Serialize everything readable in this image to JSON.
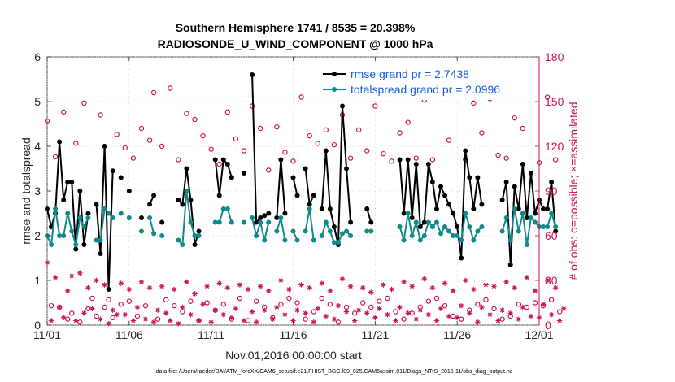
{
  "chart_data": {
    "type": "line",
    "title_line1": "Southern Hemisphere 1741 / 8535 = 20.398%",
    "title_line2": "RADIOSONDE_U_WIND_COMPONENT @ 1000 hPa",
    "xlabel": "Nov.01,2016 00:00:00 start",
    "ylabel_left": "rmse and totalspread",
    "ylabel_right": "# of obs: o=possible; ×=assimilated",
    "footer": "data file: /Users/raeder/DAI/ATM_forcXX/CAM6_setup/f.e21.FHIST_BGC.f09_025.CAM6assim.011/Diags_NTrS_2016-11/obs_diag_output.nc",
    "xlim": [
      0,
      30
    ],
    "ylim_left": [
      0,
      6
    ],
    "ylim_right": [
      0,
      180
    ],
    "x_ticks": [
      0,
      5,
      10,
      15,
      20,
      25,
      30
    ],
    "x_tick_labels": [
      "11/01",
      "11/06",
      "11/11",
      "11/16",
      "11/21",
      "11/26",
      "12/01"
    ],
    "y_left_ticks": [
      "0",
      "1",
      "2",
      "3",
      "4",
      "5",
      "6"
    ],
    "y_right_ticks": [
      "0",
      "30",
      "60",
      "90",
      "120",
      "150",
      "180"
    ],
    "colors": {
      "rmse": "#000000",
      "spread": "#0e8a8a",
      "obs": "#cc1155",
      "legend_text": "#1a5fe0"
    },
    "legend": [
      {
        "name": "rmse grand pr = 2.7438"
      },
      {
        "name": "totalspread grand pr = 2.0996"
      }
    ],
    "series": [
      {
        "name": "rmse",
        "axis": "left",
        "values": [
          2.6,
          2.2,
          2.5,
          4.1,
          2.8,
          3.2,
          3.2,
          1.7,
          3.0,
          1.8,
          2.5,
          null,
          2.7,
          1.6,
          4.0,
          0.8,
          3.45,
          null,
          3.3,
          null,
          3.0,
          null,
          null,
          2.4,
          null,
          2.7,
          2.9,
          null,
          2.3,
          null,
          null,
          null,
          2.8,
          2.7,
          3.5,
          2.8,
          1.8,
          2.1,
          null,
          null,
          null,
          3.7,
          2.9,
          3.7,
          3.6,
          3.3,
          null,
          null,
          3.4,
          null,
          5.6,
          2.3,
          2.4,
          2.45,
          2.5,
          null,
          2.4,
          3.7,
          2.5,
          null,
          3.3,
          2.9,
          null,
          3.5,
          2.7,
          2.9,
          null,
          2.6,
          3.9,
          2.6,
          2.2,
          1.8,
          4.9,
          3.5,
          2.3,
          null,
          null,
          null,
          2.6,
          2.3,
          null,
          null,
          null,
          null,
          null,
          null,
          3.7,
          2.5,
          3.7,
          2.4,
          3.6,
          2.2,
          2.3,
          3.6,
          3.2,
          2.6,
          3.1,
          2.9,
          2.7,
          2.5,
          2.2,
          1.5,
          3.9,
          3.3,
          2.6,
          3.3,
          2.7,
          null,
          null,
          null,
          null,
          2.8,
          3.2,
          1.35,
          3.1,
          2.6,
          3.6,
          2.4,
          3.4,
          2.5,
          2.8,
          2.6,
          2.6,
          3.2,
          2.1,
          null,
          null
        ]
      },
      {
        "name": "totalspread",
        "axis": "left",
        "values": [
          2.0,
          1.8,
          2.6,
          2.0,
          2.0,
          2.5,
          2.1,
          1.8,
          2.4,
          2.2,
          2.4,
          null,
          1.9,
          1.9,
          2.6,
          2.5,
          2.4,
          null,
          2.5,
          null,
          2.4,
          null,
          null,
          2.1,
          null,
          2.4,
          2.05,
          null,
          2.0,
          null,
          null,
          null,
          1.9,
          1.8,
          3.0,
          2.3,
          2.0,
          2.0,
          null,
          null,
          null,
          2.3,
          2.3,
          2.6,
          2.6,
          2.3,
          null,
          null,
          2.3,
          null,
          2.4,
          2.0,
          2.3,
          1.9,
          2.3,
          null,
          2.1,
          2.4,
          1.9,
          null,
          2.1,
          1.9,
          null,
          2.1,
          2.6,
          1.9,
          null,
          2.0,
          2.3,
          2.1,
          1.85,
          1.85,
          2.05,
          2.1,
          2.0,
          null,
          null,
          null,
          2.1,
          2.1,
          null,
          null,
          null,
          null,
          null,
          null,
          2.2,
          1.9,
          2.5,
          2.0,
          2.3,
          1.9,
          2.0,
          2.3,
          2.2,
          2.3,
          2.05,
          2.2,
          2.1,
          2.0,
          2.0,
          1.9,
          2.5,
          2.2,
          1.9,
          2.1,
          2.2,
          null,
          null,
          null,
          null,
          2.1,
          2.4,
          1.9,
          2.6,
          2.1,
          2.5,
          1.8,
          2.4,
          2.3,
          2.2,
          2.2,
          2.2,
          2.5,
          2.2,
          null,
          null
        ]
      },
      {
        "name": "possible_obs",
        "axis": "right",
        "marker": "circle",
        "values": [
          137,
          13,
          113,
          12,
          143,
          4,
          8,
          122,
          2,
          149,
          11,
          18,
          6,
          141,
          12,
          17,
          5,
          128,
          14,
          119,
          16,
          112,
          6,
          132,
          13,
          124,
          156,
          4,
          120,
          17,
          159,
          13,
          111,
          9,
          142,
          16,
          138,
          3,
          127,
          15,
          118,
          10,
          108,
          14,
          143,
          4,
          125,
          18,
          117,
          3,
          147,
          16,
          132,
          12,
          104,
          5,
          133,
          14,
          116,
          18,
          110,
          15,
          153,
          4,
          127,
          9,
          122,
          18,
          131,
          14,
          121,
          2,
          141,
          12,
          112,
          8,
          131,
          15,
          117,
          12,
          147,
          16,
          115,
          18,
          110,
          9,
          129,
          4,
          136,
          8,
          112,
          12,
          151,
          16,
          111,
          18,
          153,
          13,
          124,
          6,
          154,
          4,
          111,
          10,
          149,
          14,
          129,
          17,
          152,
          11,
          114,
          4,
          112,
          6,
          139,
          14,
          132,
          12,
          154,
          15,
          109,
          13,
          153,
          17,
          111,
          9,
          null,
          null
        ]
      },
      {
        "name": "assimilated_obs",
        "axis": "right",
        "marker": "star",
        "values": [
          42,
          3,
          32,
          12,
          5,
          23,
          33,
          3,
          35,
          8,
          25,
          11,
          30,
          4,
          27,
          1,
          10,
          7,
          28,
          7,
          24,
          3,
          12,
          29,
          4,
          25,
          2,
          10,
          26,
          8,
          3,
          24,
          1,
          12,
          29,
          7,
          21,
          3,
          14,
          26,
          2,
          10,
          28,
          7,
          25,
          5,
          11,
          27,
          3,
          24,
          9,
          2,
          26,
          10,
          23,
          4,
          12,
          30,
          7,
          24,
          3,
          10,
          27,
          8,
          25,
          2,
          11,
          28,
          6,
          23,
          4,
          13,
          31,
          9,
          26,
          3,
          10,
          25,
          8,
          22,
          5,
          11,
          27,
          7,
          24,
          3,
          12,
          29,
          8,
          26,
          4,
          10,
          31,
          7,
          25,
          3,
          11,
          28,
          6,
          23,
          5,
          13,
          30,
          8,
          24,
          2,
          12,
          27,
          7,
          26,
          3,
          10,
          29,
          8,
          25,
          4,
          12,
          32,
          6,
          23,
          5,
          14,
          30,
          7,
          25,
          3,
          11,
          null
        ]
      }
    ]
  }
}
